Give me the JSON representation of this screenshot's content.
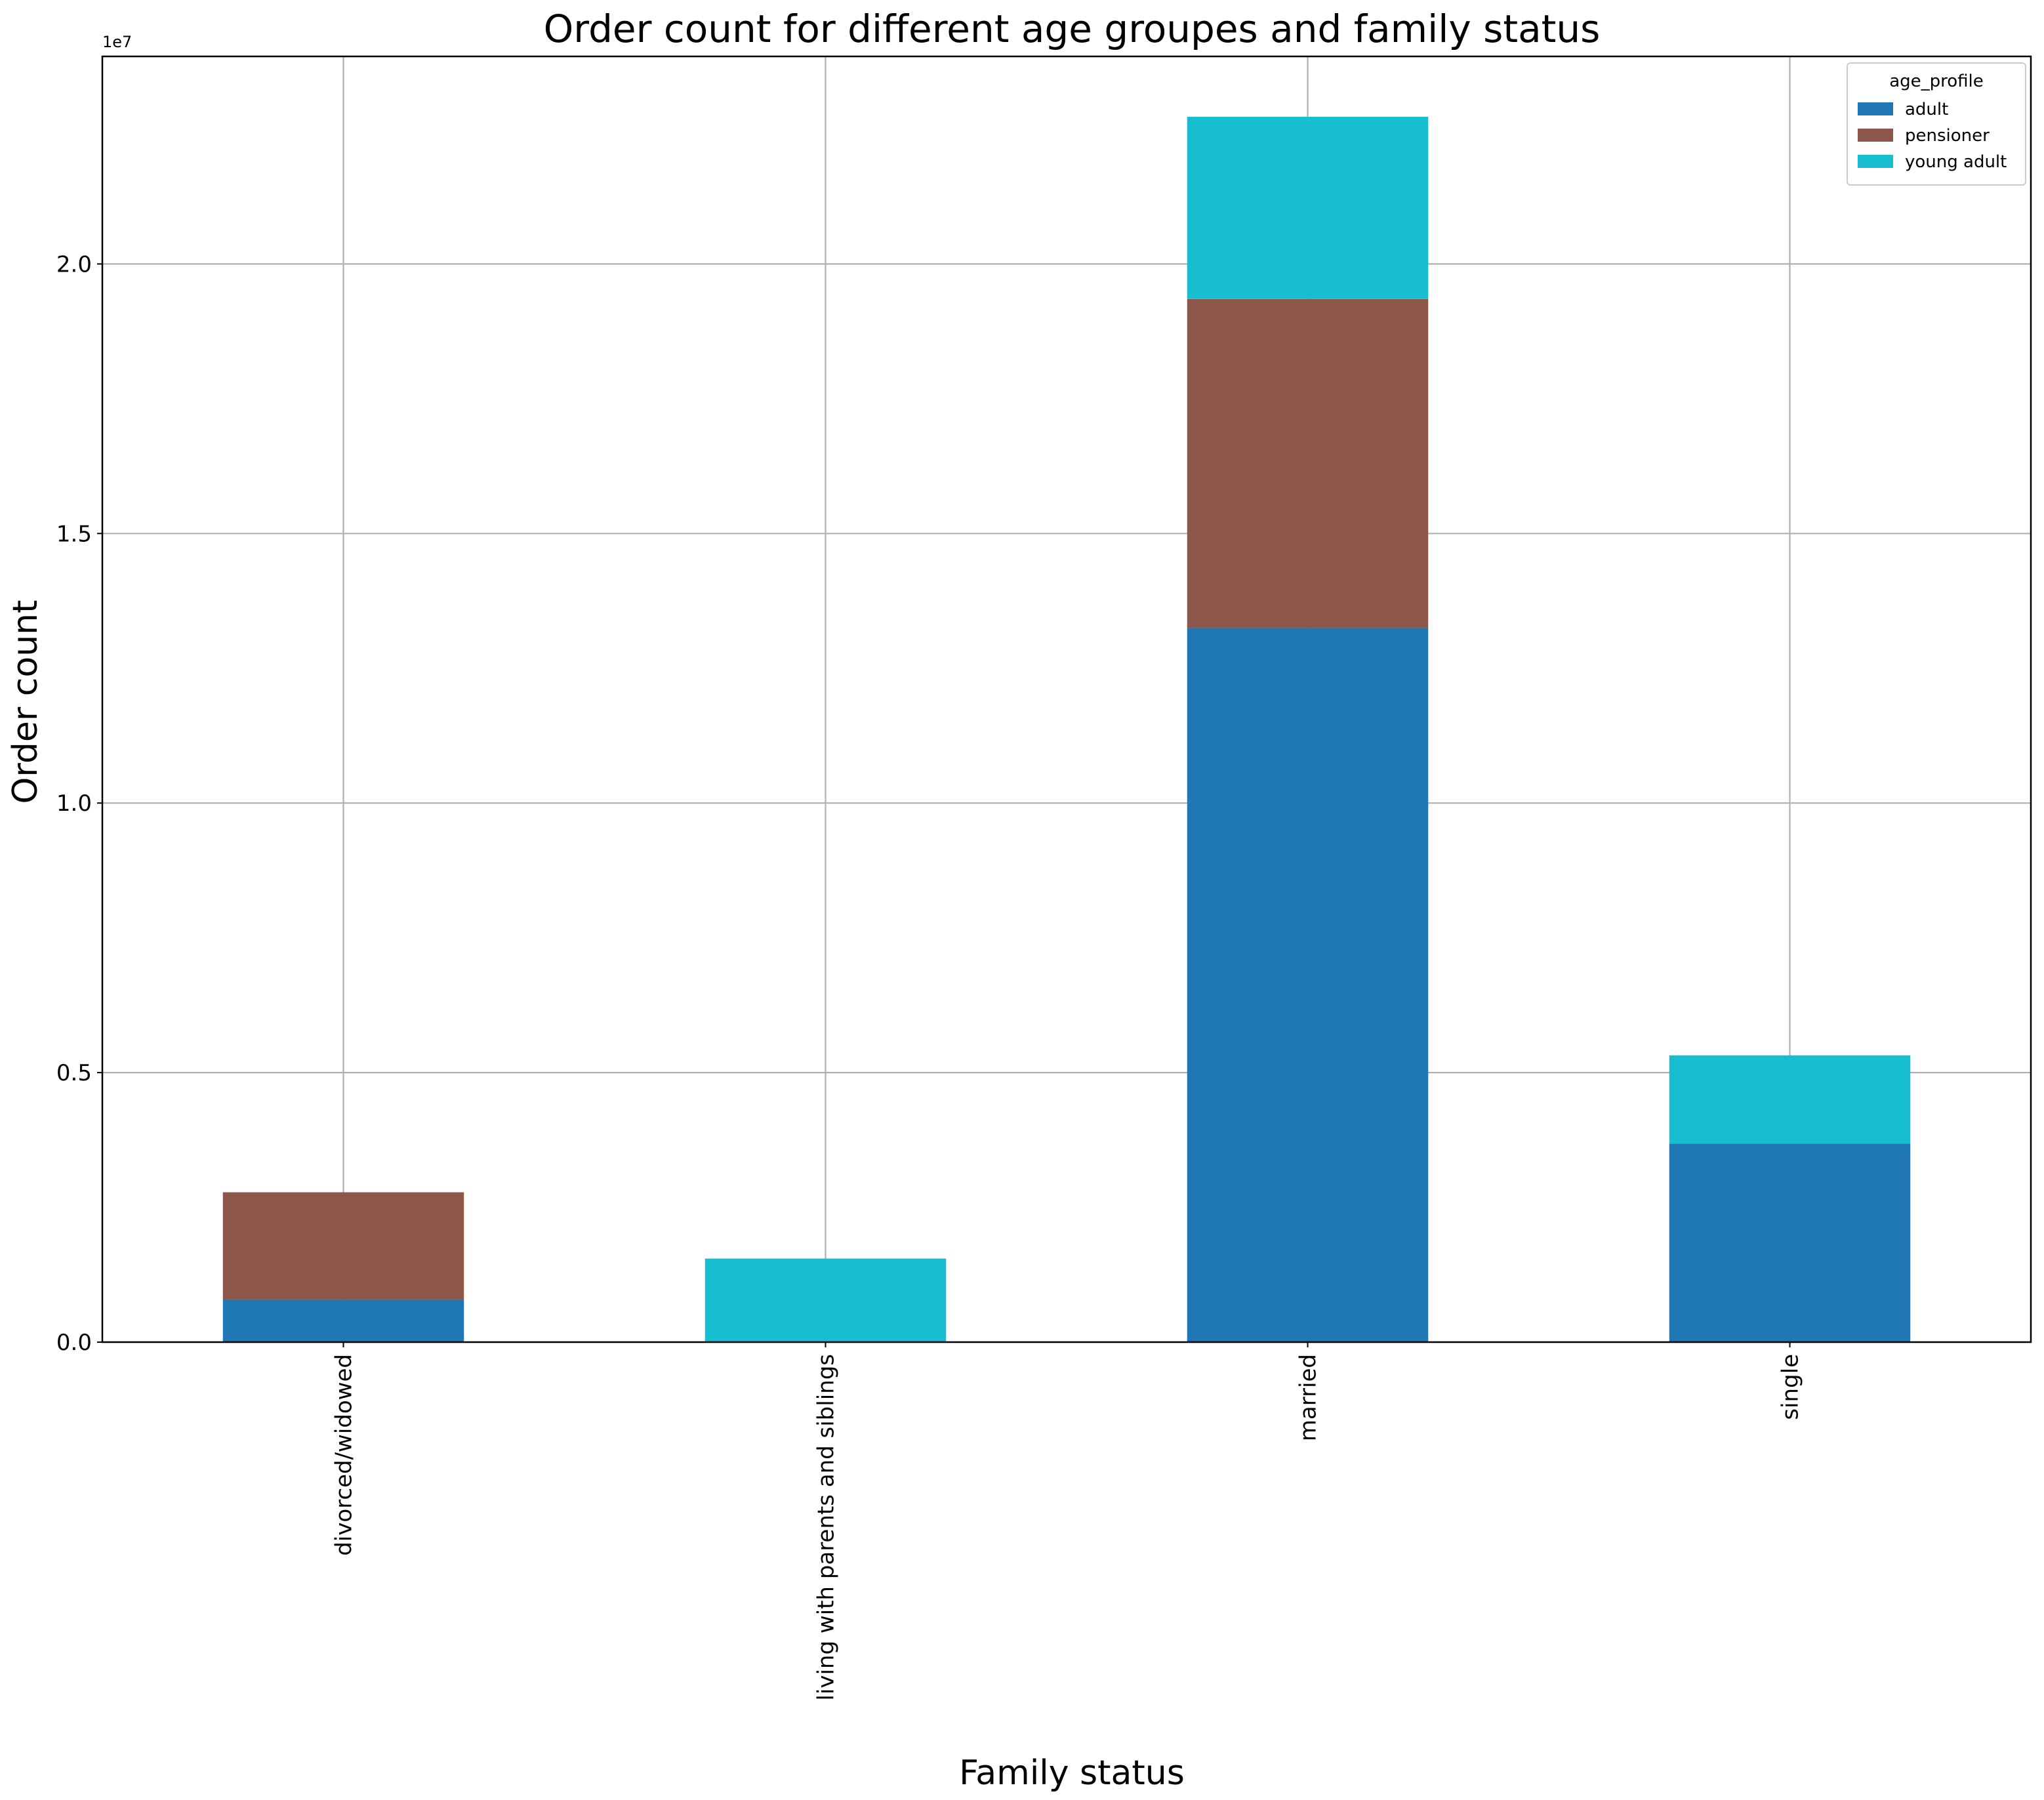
{
  "chart_data": {
    "type": "bar",
    "stacked": true,
    "title": "Order count for different age groupes and family status",
    "xlabel": "Family status",
    "ylabel": "Order count",
    "y_offset_label": "1e7",
    "ylim": [
      0,
      23850000
    ],
    "yticks": [
      0,
      5000000,
      10000000,
      15000000,
      20000000
    ],
    "ytick_labels": [
      "0.0",
      "0.5",
      "1.0",
      "1.5",
      "2.0"
    ],
    "categories": [
      "divorced/widowed",
      "living with parents and siblings",
      "married",
      "single"
    ],
    "legend_title": "age_profile",
    "legend_position": "top-right",
    "grid": true,
    "series": [
      {
        "name": "adult",
        "color": "#1f77b4",
        "values": [
          790000,
          0,
          13250000,
          3680000
        ]
      },
      {
        "name": "pensioner",
        "color": "#8c564b",
        "values": [
          1990000,
          0,
          6100000,
          0
        ]
      },
      {
        "name": "young adult",
        "color": "#17becf",
        "values": [
          0,
          1550000,
          3380000,
          1640000
        ]
      }
    ]
  }
}
